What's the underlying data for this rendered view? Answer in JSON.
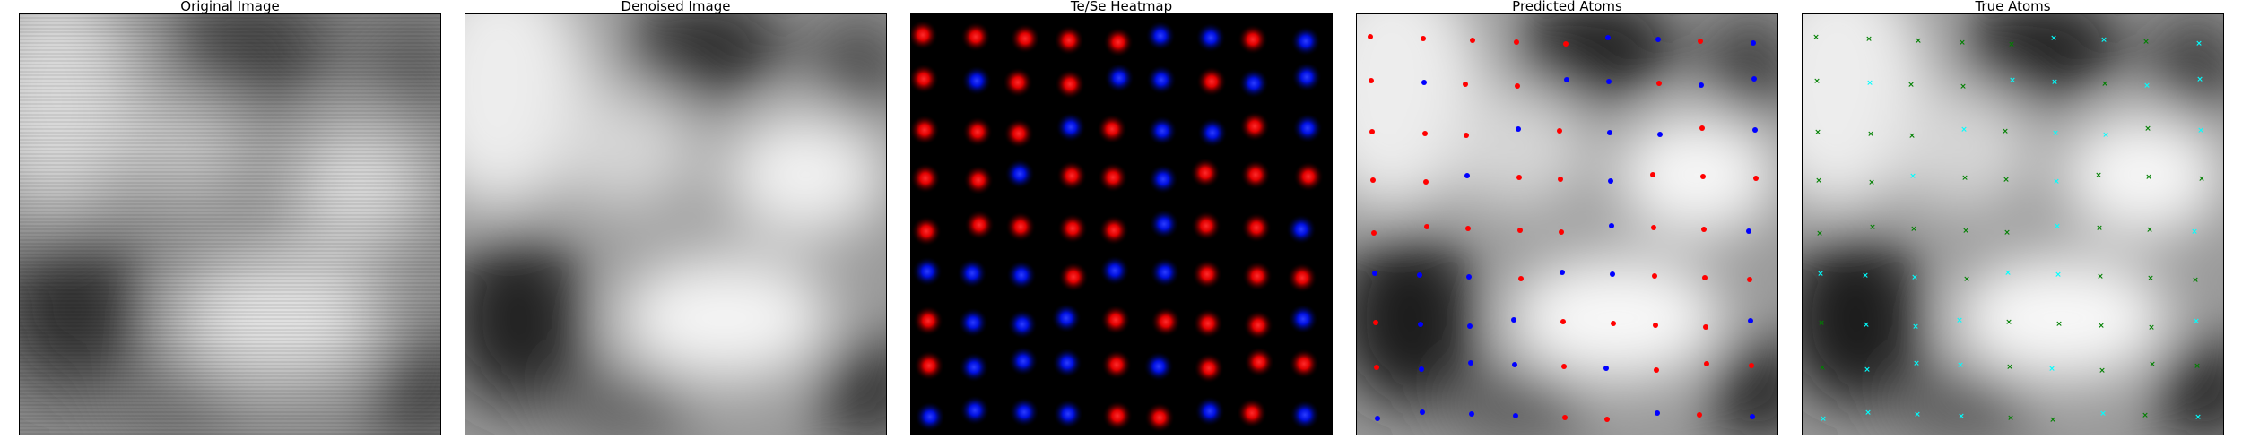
{
  "panels": [
    {
      "id": "original",
      "title": "Original Image"
    },
    {
      "id": "denoised",
      "title": "Denoised Image"
    },
    {
      "id": "heatmap",
      "title": "Te/Se Heatmap"
    },
    {
      "id": "predicted",
      "title": "Predicted Atoms"
    },
    {
      "id": "true",
      "title": "True Atoms"
    }
  ],
  "colors": {
    "te": "#ff0000",
    "se": "#0000ff",
    "true_a": "#00ffff",
    "true_b": "#008000"
  }
}
